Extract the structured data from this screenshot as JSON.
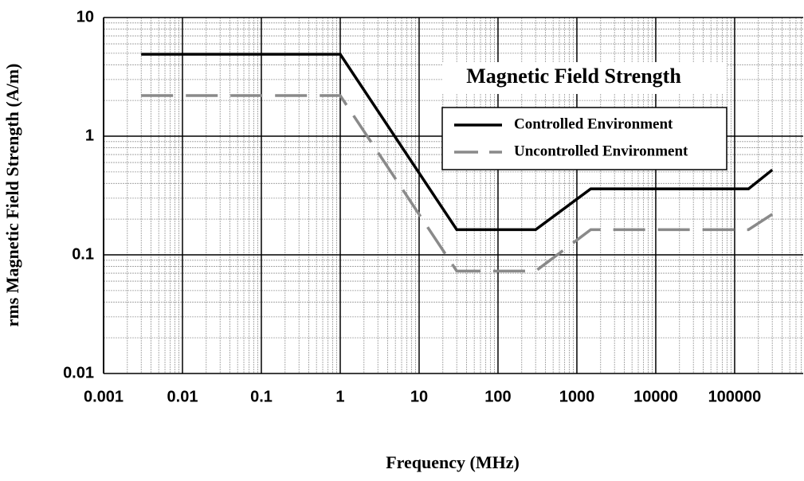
{
  "chart_data": {
    "type": "line",
    "title": "Magnetic Field Strength",
    "xlabel": "Frequency (MHz)",
    "ylabel": "rms Magnetic Field Strength (A/m)",
    "log_x": true,
    "log_y": true,
    "grid": true,
    "xlim": [
      0.001,
      740000
    ],
    "ylim": [
      0.01,
      10
    ],
    "xticks": [
      0.001,
      0.01,
      0.1,
      1,
      10,
      100,
      1000,
      10000,
      100000
    ],
    "yticks": [
      0.01,
      0.1,
      1,
      10
    ],
    "legend": "upper right",
    "series": [
      {
        "name": "Controlled Environment",
        "color": "#000000",
        "dashed": false,
        "x": [
          0.003,
          1,
          30,
          300,
          1500,
          150000,
          300000
        ],
        "values": [
          4.9,
          4.9,
          0.163,
          0.163,
          0.36,
          0.36,
          0.52
        ]
      },
      {
        "name": "Uncontrolled Environment",
        "color": "#8a8a8a",
        "dashed": true,
        "x": [
          0.003,
          1,
          30,
          300,
          1500,
          150000,
          300000
        ],
        "values": [
          2.2,
          2.2,
          0.073,
          0.073,
          0.163,
          0.163,
          0.22
        ]
      }
    ]
  }
}
